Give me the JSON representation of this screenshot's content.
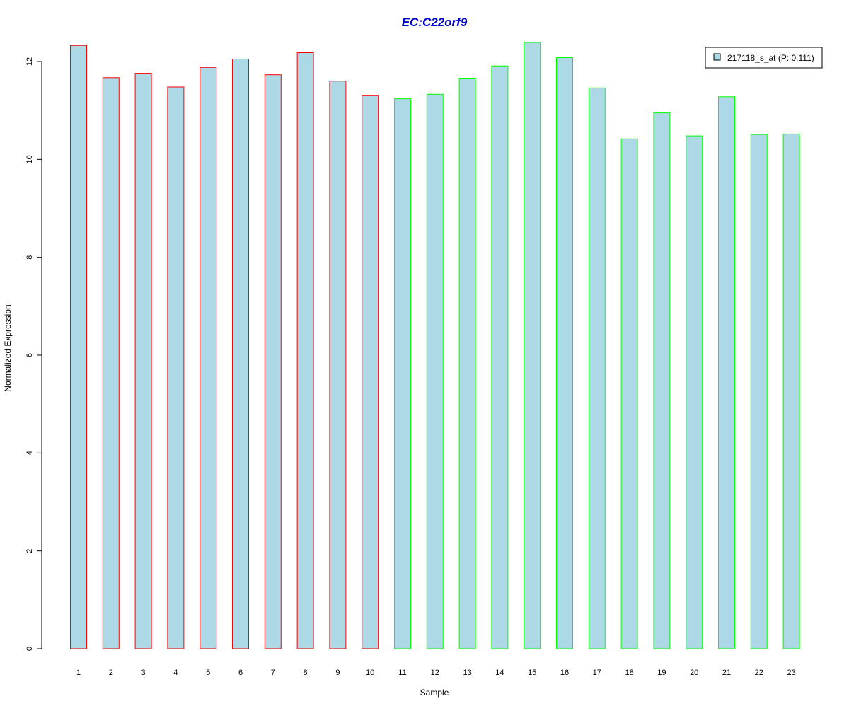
{
  "chart_data": {
    "type": "bar",
    "title": "EC:C22orf9",
    "xlabel": "Sample",
    "ylabel": "Normalized Expression",
    "categories": [
      "1",
      "2",
      "3",
      "4",
      "5",
      "6",
      "7",
      "8",
      "9",
      "10",
      "11",
      "12",
      "13",
      "14",
      "15",
      "16",
      "17",
      "18",
      "19",
      "20",
      "21",
      "22",
      "23"
    ],
    "series": [
      {
        "name": "217118_s_at (P: 0.111)",
        "values": [
          12.33,
          11.67,
          11.76,
          11.48,
          11.88,
          12.05,
          11.73,
          12.18,
          11.6,
          11.31,
          11.24,
          11.33,
          11.66,
          11.91,
          12.39,
          12.08,
          11.46,
          10.42,
          10.95,
          10.48,
          11.28,
          10.51,
          10.52
        ],
        "group": [
          "A",
          "A",
          "A",
          "A",
          "A",
          "A",
          "A",
          "A",
          "A",
          "A",
          "B",
          "B",
          "B",
          "B",
          "B",
          "B",
          "B",
          "B",
          "B",
          "B",
          "B",
          "B",
          "B"
        ]
      }
    ],
    "ylim": [
      0,
      12.39
    ],
    "yticks": [
      0,
      2,
      4,
      6,
      8,
      10,
      12
    ],
    "ytick_labels": [
      "0",
      "2",
      "4",
      "6",
      "8",
      "10",
      "12"
    ],
    "grid": false,
    "legend_position": "top-right",
    "colors": {
      "bar_fill": "#ADD8E6",
      "group_A_border": "#FF0000",
      "group_B_border": "#00FF00",
      "title": "#0000CD",
      "axis": "#000000",
      "background": "#FFFFFF"
    }
  }
}
